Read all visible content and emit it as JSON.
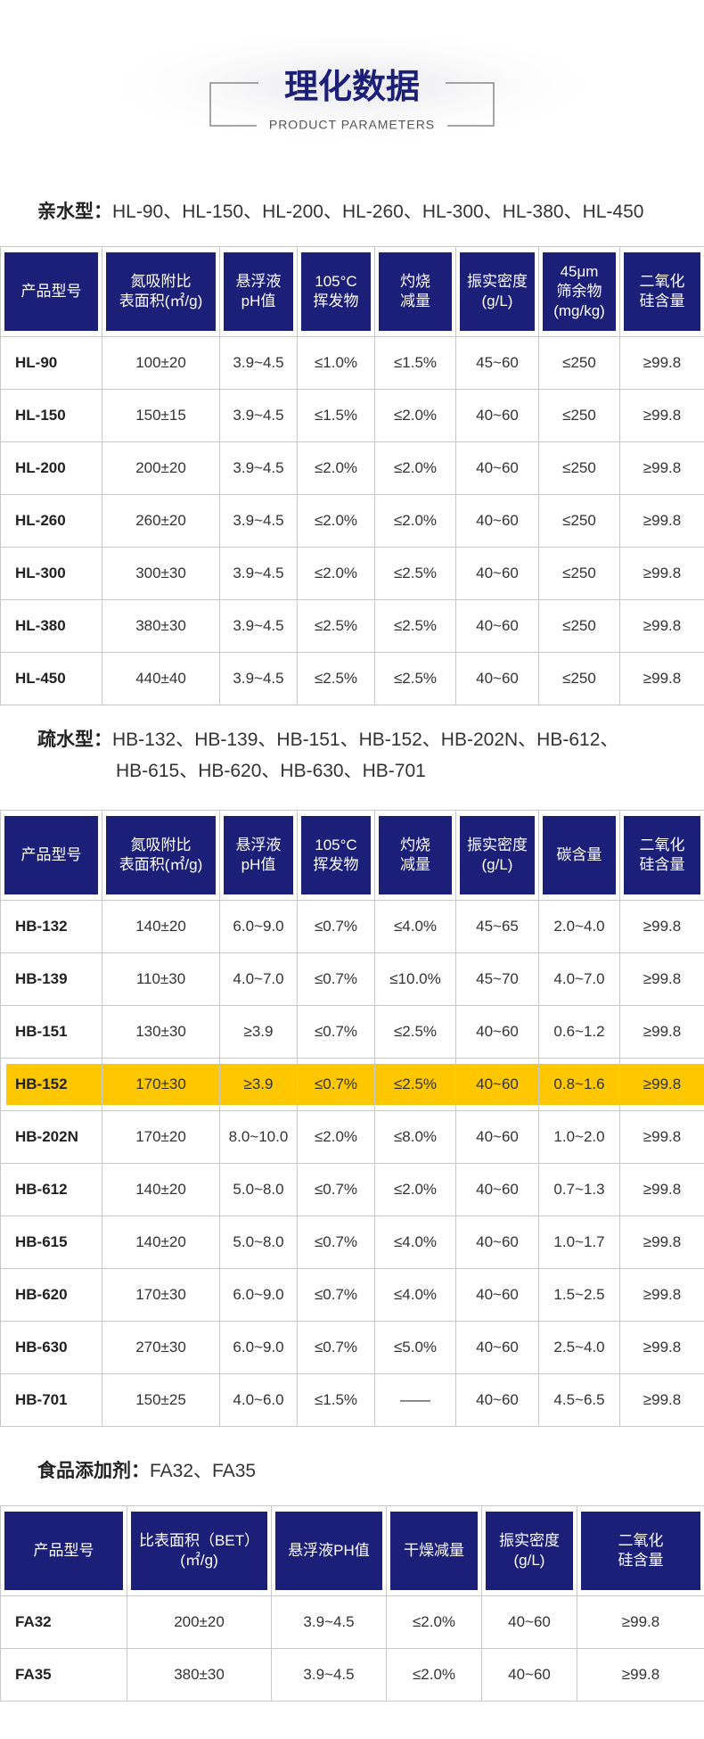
{
  "header": {
    "title": "理化数据",
    "subtitle": "PRODUCT PARAMETERS"
  },
  "sections": [
    {
      "label": "亲水型：",
      "items_lines": [
        "HL-90、HL-150、HL-200、HL-260、HL-300、HL-380、HL-450"
      ],
      "columns": [
        [
          "产品型号"
        ],
        [
          "氮吸附比",
          "表面积(㎡/g)"
        ],
        [
          "悬浮液",
          "pH值"
        ],
        [
          "105°C",
          "挥发物"
        ],
        [
          "灼烧",
          "减量"
        ],
        [
          "振实密度",
          "(g/L)"
        ],
        [
          "45μm",
          "筛余物",
          "(mg/kg)"
        ],
        [
          "二氧化",
          "硅含量"
        ]
      ],
      "rows": [
        [
          "HL-90",
          "100±20",
          "3.9~4.5",
          "≤1.0%",
          "≤1.5%",
          "45~60",
          "≤250",
          "≥99.8"
        ],
        [
          "HL-150",
          "150±15",
          "3.9~4.5",
          "≤1.5%",
          "≤2.0%",
          "40~60",
          "≤250",
          "≥99.8"
        ],
        [
          "HL-200",
          "200±20",
          "3.9~4.5",
          "≤2.0%",
          "≤2.0%",
          "40~60",
          "≤250",
          "≥99.8"
        ],
        [
          "HL-260",
          "260±20",
          "3.9~4.5",
          "≤2.0%",
          "≤2.0%",
          "40~60",
          "≤250",
          "≥99.8"
        ],
        [
          "HL-300",
          "300±30",
          "3.9~4.5",
          "≤2.0%",
          "≤2.5%",
          "40~60",
          "≤250",
          "≥99.8"
        ],
        [
          "HL-380",
          "380±30",
          "3.9~4.5",
          "≤2.5%",
          "≤2.5%",
          "40~60",
          "≤250",
          "≥99.8"
        ],
        [
          "HL-450",
          "440±40",
          "3.9~4.5",
          "≤2.5%",
          "≤2.5%",
          "40~60",
          "≤250",
          "≥99.8"
        ]
      ]
    },
    {
      "label": "疏水型：",
      "items_lines": [
        "HB-132、HB-139、HB-151、HB-152、HB-202N、HB-612、",
        "HB-615、HB-620、HB-630、HB-701"
      ],
      "columns": [
        [
          "产品型号"
        ],
        [
          "氮吸附比",
          "表面积(㎡/g)"
        ],
        [
          "悬浮液",
          "pH值"
        ],
        [
          "105°C",
          "挥发物"
        ],
        [
          "灼烧",
          "减量"
        ],
        [
          "振实密度",
          "(g/L)"
        ],
        [
          "碳含量"
        ],
        [
          "二氧化",
          "硅含量"
        ]
      ],
      "highlight_row": 3,
      "rows": [
        [
          "HB-132",
          "140±20",
          "6.0~9.0",
          "≤0.7%",
          "≤4.0%",
          "45~65",
          "2.0~4.0",
          "≥99.8"
        ],
        [
          "HB-139",
          "110±30",
          "4.0~7.0",
          "≤0.7%",
          "≤10.0%",
          "45~70",
          "4.0~7.0",
          "≥99.8"
        ],
        [
          "HB-151",
          "130±30",
          "≥3.9",
          "≤0.7%",
          "≤2.5%",
          "40~60",
          "0.6~1.2",
          "≥99.8"
        ],
        [
          "HB-152",
          "170±30",
          "≥3.9",
          "≤0.7%",
          "≤2.5%",
          "40~60",
          "0.8~1.6",
          "≥99.8"
        ],
        [
          "HB-202N",
          "170±20",
          "8.0~10.0",
          "≤2.0%",
          "≤8.0%",
          "40~60",
          "1.0~2.0",
          "≥99.8"
        ],
        [
          "HB-612",
          "140±20",
          "5.0~8.0",
          "≤0.7%",
          "≤2.0%",
          "40~60",
          "0.7~1.3",
          "≥99.8"
        ],
        [
          "HB-615",
          "140±20",
          "5.0~8.0",
          "≤0.7%",
          "≤4.0%",
          "40~60",
          "1.0~1.7",
          "≥99.8"
        ],
        [
          "HB-620",
          "170±30",
          "6.0~9.0",
          "≤0.7%",
          "≤4.0%",
          "40~60",
          "1.5~2.5",
          "≥99.8"
        ],
        [
          "HB-630",
          "270±30",
          "6.0~9.0",
          "≤0.7%",
          "≤5.0%",
          "40~60",
          "2.5~4.0",
          "≥99.8"
        ],
        [
          "HB-701",
          "150±25",
          "4.0~6.0",
          "≤1.5%",
          "——",
          "40~60",
          "4.5~6.5",
          "≥99.8"
        ]
      ]
    },
    {
      "label": "食品添加剂：",
      "items_lines": [
        "FA32、FA35"
      ],
      "columns": [
        [
          "产品型号"
        ],
        [
          "比表面积（BET）",
          "(㎡/g)"
        ],
        [
          "悬浮液PH值"
        ],
        [
          "干燥减量"
        ],
        [
          "振实密度",
          "(g/L)"
        ],
        [
          "二氧化",
          "硅含量"
        ]
      ],
      "rows": [
        [
          "FA32",
          "200±20",
          "3.9~4.5",
          "≤2.0%",
          "40~60",
          "≥99.8"
        ],
        [
          "FA35",
          "380±30",
          "3.9~4.5",
          "≤2.0%",
          "40~60",
          "≥99.8"
        ]
      ]
    }
  ]
}
